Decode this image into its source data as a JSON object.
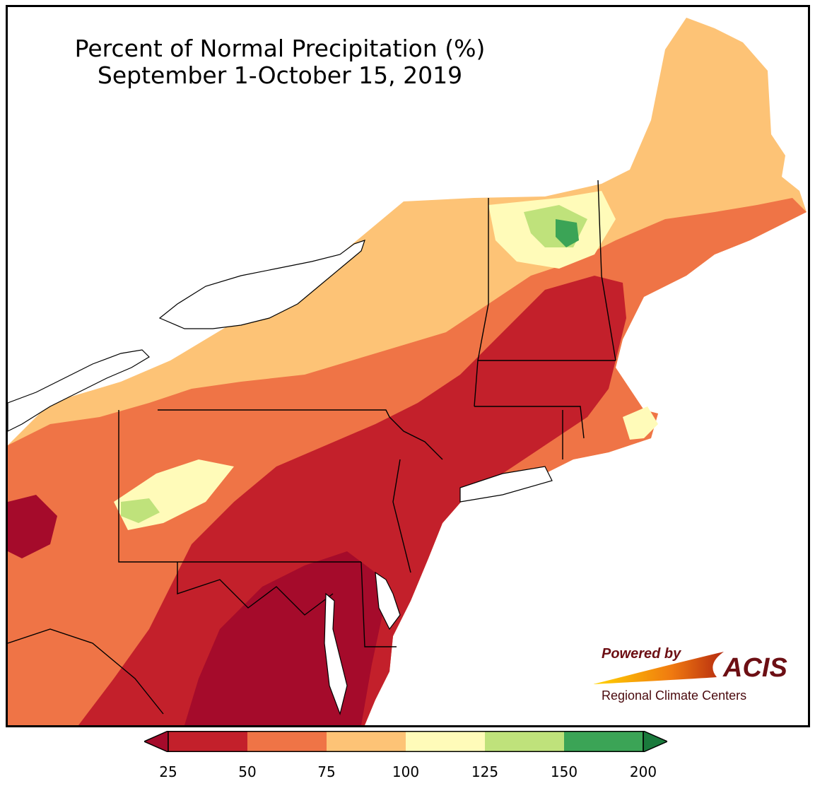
{
  "title": {
    "line1": "Percent of Normal Precipitation (%)",
    "line2": "September 1-October 15, 2019"
  },
  "legend": {
    "bins": [
      {
        "from": 25,
        "to": 50,
        "color": "#c3202b"
      },
      {
        "from": 50,
        "to": 75,
        "color": "#ef7446"
      },
      {
        "from": 75,
        "to": 100,
        "color": "#fdc376"
      },
      {
        "from": 100,
        "to": 125,
        "color": "#fffbb9"
      },
      {
        "from": 125,
        "to": 150,
        "color": "#bfe27b"
      },
      {
        "from": 150,
        "to": 200,
        "color": "#3ba456"
      }
    ],
    "under_color": "#a50b2b",
    "over_color": "#1a7a3c",
    "tick_labels": [
      "25",
      "50",
      "75",
      "100",
      "125",
      "150",
      "200"
    ]
  },
  "logo": {
    "powered_by": "Powered by",
    "name": "ACIS",
    "subtitle": "Regional Climate Centers"
  }
}
